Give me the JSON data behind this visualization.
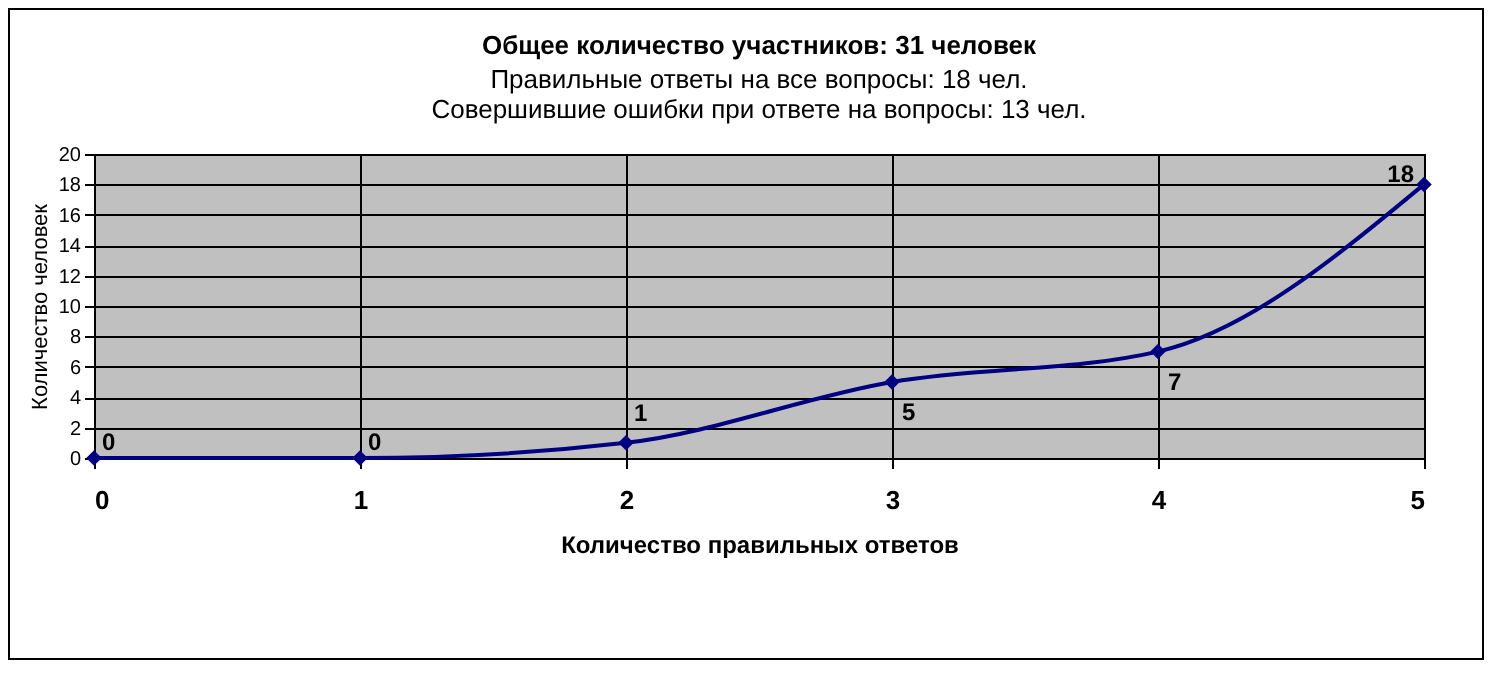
{
  "chart_data": {
    "type": "line",
    "title": "Общее количество участников: 31 человек",
    "subtitle": "Правильные ответы на все вопросы: 18 чел.\nСовершившие ошибки при ответе на вопросы: 13 чел.",
    "xlabel": "Количество правильных ответов",
    "ylabel": "Количество человек",
    "x": [
      0,
      1,
      2,
      3,
      4,
      5
    ],
    "series": [
      {
        "color": "#000080",
        "values": [
          0,
          0,
          1,
          5,
          7,
          18
        ]
      }
    ],
    "xlim": [
      0,
      5
    ],
    "xticks": [
      0,
      1,
      2,
      3,
      4,
      5
    ],
    "ylim": [
      0,
      20
    ],
    "yticks": [
      0,
      2,
      4,
      6,
      8,
      10,
      12,
      14,
      16,
      18,
      20
    ],
    "grid": true,
    "marker": "diamond",
    "line_style": "solid",
    "data_labels": true
  }
}
